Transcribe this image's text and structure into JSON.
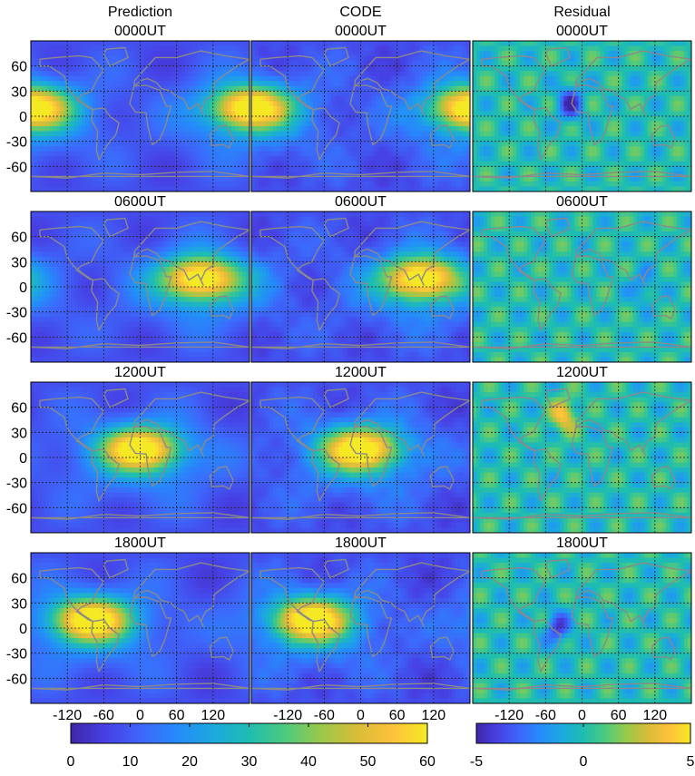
{
  "columns": [
    {
      "id": "prediction",
      "heading": "Prediction",
      "scale": "tec"
    },
    {
      "id": "code",
      "heading": "CODE",
      "scale": "tec"
    },
    {
      "id": "residual",
      "heading": "Residual",
      "scale": "res"
    }
  ],
  "rows": [
    {
      "time": "0000UT",
      "peak_lon": 180,
      "res_hot": {
        "lon": -20,
        "lat": 15,
        "amp": -4.5
      }
    },
    {
      "time": "0600UT",
      "peak_lon": 100,
      "res_hot": {
        "lon": 100,
        "lat": 0,
        "amp": -2
      }
    },
    {
      "time": "1200UT",
      "peak_lon": 0,
      "res_hot": {
        "lon": -30,
        "lat": 50,
        "amp": 4
      }
    },
    {
      "time": "1800UT",
      "peak_lon": -80,
      "res_hot": {
        "lon": -40,
        "lat": 0,
        "amp": -4
      }
    }
  ],
  "chart_data": {
    "type": "heatmap",
    "x_ticks": [
      "-120",
      "-60",
      "0",
      "60",
      "120"
    ],
    "y_ticks": [
      "60",
      "30",
      "0",
      "-30",
      "-60"
    ],
    "xlim": [
      -180,
      180
    ],
    "ylim": [
      -90,
      90
    ],
    "grid": true,
    "colorbars": [
      {
        "id": "tec",
        "min": 0,
        "max": 60,
        "ticks": [
          "0",
          "10",
          "20",
          "30",
          "40",
          "50",
          "60"
        ]
      },
      {
        "id": "res",
        "min": -5,
        "max": 5,
        "ticks": [
          "-5",
          "0",
          "5"
        ]
      }
    ],
    "colormap": [
      "#3e26a8",
      "#4741e5",
      "#3d67fb",
      "#248cfa",
      "#1ca9de",
      "#1ebdb1",
      "#4cca7e",
      "#98c94b",
      "#d8bc37",
      "#fdc13c",
      "#f5e924"
    ]
  }
}
